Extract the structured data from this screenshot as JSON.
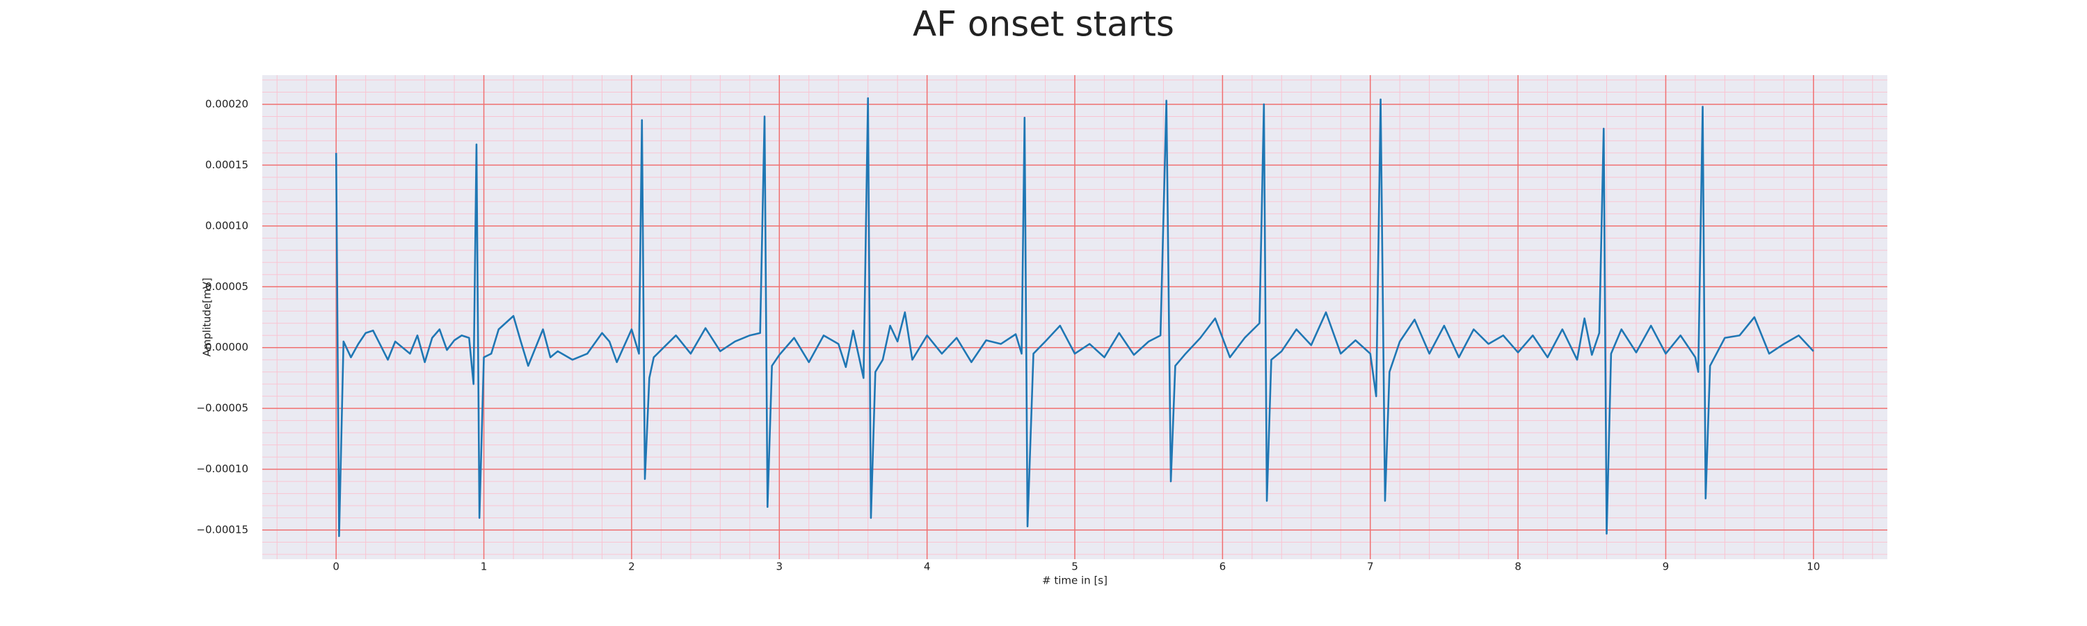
{
  "chart_data": {
    "type": "line",
    "title": "AF onset starts",
    "xlabel": "# time in [s]",
    "ylabel": "Amplitude[mV]",
    "color": "#1f77b4",
    "grid": true,
    "minor_grid": true,
    "xlim": [
      -0.5,
      10.5
    ],
    "ylim": [
      -0.000174,
      0.000224
    ],
    "xticks": [
      0,
      1,
      2,
      3,
      4,
      5,
      6,
      7,
      8,
      9,
      10
    ],
    "yticks": [
      {
        "value": -0.00015,
        "label": "−0.00015"
      },
      {
        "value": -0.0001,
        "label": "−0.00010"
      },
      {
        "value": -5e-05,
        "label": "−0.00005"
      },
      {
        "value": 0,
        "label": "0.00000"
      },
      {
        "value": 5e-05,
        "label": "0.00005"
      },
      {
        "value": 0.0001,
        "label": "0.00010"
      },
      {
        "value": 0.00015,
        "label": "0.00015"
      },
      {
        "value": 0.0002,
        "label": "0.00020"
      }
    ],
    "xminor": [
      -0.4,
      -0.2,
      0.2,
      0.4,
      0.6,
      0.8,
      1.2,
      1.4,
      1.6,
      1.8,
      2.2,
      2.4,
      2.6,
      2.8,
      3.2,
      3.4,
      3.6,
      3.8,
      4.2,
      4.4,
      4.6,
      4.8,
      5.2,
      5.4,
      5.6,
      5.8,
      6.2,
      6.4,
      6.6,
      6.8,
      7.2,
      7.4,
      7.6,
      7.8,
      8.2,
      8.4,
      8.6,
      8.8,
      9.2,
      9.4,
      9.6,
      9.8,
      10.2,
      10.4
    ],
    "yminor": [
      -0.00017,
      -0.00016,
      -0.00014,
      -0.00013,
      -0.00012,
      -0.00011,
      -9e-05,
      -8e-05,
      -7e-05,
      -6e-05,
      -4e-05,
      -3e-05,
      -2e-05,
      -1e-05,
      1e-05,
      2e-05,
      3e-05,
      4e-05,
      6e-05,
      7e-05,
      8e-05,
      9e-05,
      0.00011,
      0.00012,
      0.00013,
      0.00014,
      0.00016,
      0.00017,
      0.00018,
      0.00019,
      0.00021,
      0.00022
    ],
    "x": [
      0,
      0.02,
      0.05,
      0.1,
      0.15,
      0.2,
      0.25,
      0.3,
      0.35,
      0.4,
      0.5,
      0.55,
      0.6,
      0.65,
      0.7,
      0.75,
      0.8,
      0.85,
      0.9,
      0.93,
      0.95,
      0.97,
      1.0,
      1.05,
      1.1,
      1.2,
      1.25,
      1.3,
      1.4,
      1.45,
      1.5,
      1.6,
      1.7,
      1.8,
      1.85,
      1.9,
      2.0,
      2.05,
      2.07,
      2.09,
      2.12,
      2.15,
      2.2,
      2.3,
      2.4,
      2.5,
      2.6,
      2.7,
      2.8,
      2.87,
      2.9,
      2.92,
      2.95,
      3.0,
      3.1,
      3.2,
      3.3,
      3.4,
      3.45,
      3.5,
      3.57,
      3.6,
      3.62,
      3.65,
      3.7,
      3.75,
      3.8,
      3.85,
      3.9,
      4.0,
      4.1,
      4.2,
      4.3,
      4.4,
      4.5,
      4.6,
      4.64,
      4.66,
      4.68,
      4.72,
      4.8,
      4.9,
      5.0,
      5.1,
      5.2,
      5.3,
      5.4,
      5.5,
      5.58,
      5.62,
      5.65,
      5.68,
      5.75,
      5.85,
      5.95,
      6.05,
      6.15,
      6.25,
      6.28,
      6.3,
      6.33,
      6.4,
      6.5,
      6.6,
      6.7,
      6.8,
      6.9,
      7.0,
      7.04,
      7.07,
      7.1,
      7.13,
      7.2,
      7.3,
      7.4,
      7.5,
      7.6,
      7.7,
      7.8,
      7.9,
      8.0,
      8.1,
      8.2,
      8.3,
      8.4,
      8.45,
      8.5,
      8.55,
      8.58,
      8.6,
      8.63,
      8.7,
      8.8,
      8.9,
      9.0,
      9.1,
      9.2,
      9.22,
      9.25,
      9.27,
      9.3,
      9.4,
      9.5,
      9.6,
      9.7,
      9.8,
      9.9,
      10.0
    ],
    "values": [
      0.00016,
      -0.000155,
      5e-06,
      -8e-06,
      3e-06,
      1.2e-05,
      1.4e-05,
      2e-06,
      -1e-05,
      5e-06,
      -5e-06,
      1e-05,
      -1.2e-05,
      8e-06,
      1.5e-05,
      -2e-06,
      6e-06,
      1e-05,
      8e-06,
      -3e-05,
      0.000167,
      -0.00014,
      -8e-06,
      -5e-06,
      1.5e-05,
      2.6e-05,
      5e-06,
      -1.5e-05,
      1.5e-05,
      -8e-06,
      -3e-06,
      -1e-05,
      -5e-06,
      1.2e-05,
      5e-06,
      -1.2e-05,
      1.5e-05,
      -5e-06,
      0.000187,
      -0.000108,
      -2.5e-05,
      -8e-06,
      -2e-06,
      1e-05,
      -5e-06,
      1.6e-05,
      -3e-06,
      5e-06,
      1e-05,
      1.2e-05,
      0.00019,
      -0.000131,
      -1.5e-05,
      -6e-06,
      8e-06,
      -1.2e-05,
      1e-05,
      3e-06,
      -1.6e-05,
      1.4e-05,
      -2.5e-05,
      0.000205,
      -0.00014,
      -2e-05,
      -1e-05,
      1.8e-05,
      5e-06,
      2.9e-05,
      -1e-05,
      1e-05,
      -5e-06,
      8e-06,
      -1.2e-05,
      6e-06,
      3e-06,
      1.1e-05,
      -5e-06,
      0.000189,
      -0.000147,
      -5e-06,
      5e-06,
      1.8e-05,
      -5e-06,
      3e-06,
      -8e-06,
      1.2e-05,
      -6e-06,
      5e-06,
      1e-05,
      0.000203,
      -0.00011,
      -1.5e-05,
      -5e-06,
      8e-06,
      2.4e-05,
      -8e-06,
      8e-06,
      2e-05,
      0.0002,
      -0.000126,
      -1e-05,
      -3e-06,
      1.5e-05,
      2e-06,
      2.9e-05,
      -5e-06,
      6e-06,
      -5e-06,
      -4e-05,
      0.000204,
      -0.000126,
      -2e-05,
      5e-06,
      2.3e-05,
      -5e-06,
      1.8e-05,
      -8e-06,
      1.5e-05,
      3e-06,
      1e-05,
      -4e-06,
      1e-05,
      -8e-06,
      1.5e-05,
      -1e-05,
      2.4e-05,
      -6e-06,
      1.2e-05,
      0.00018,
      -0.000153,
      -5e-06,
      1.5e-05,
      -4e-06,
      1.8e-05,
      -5e-06,
      1e-05,
      -8e-06,
      -2e-05,
      0.000198,
      -0.000124,
      -1.5e-05,
      8e-06,
      1e-05,
      2.5e-05,
      -5e-06,
      3e-06,
      1e-05,
      -3e-06
    ]
  }
}
